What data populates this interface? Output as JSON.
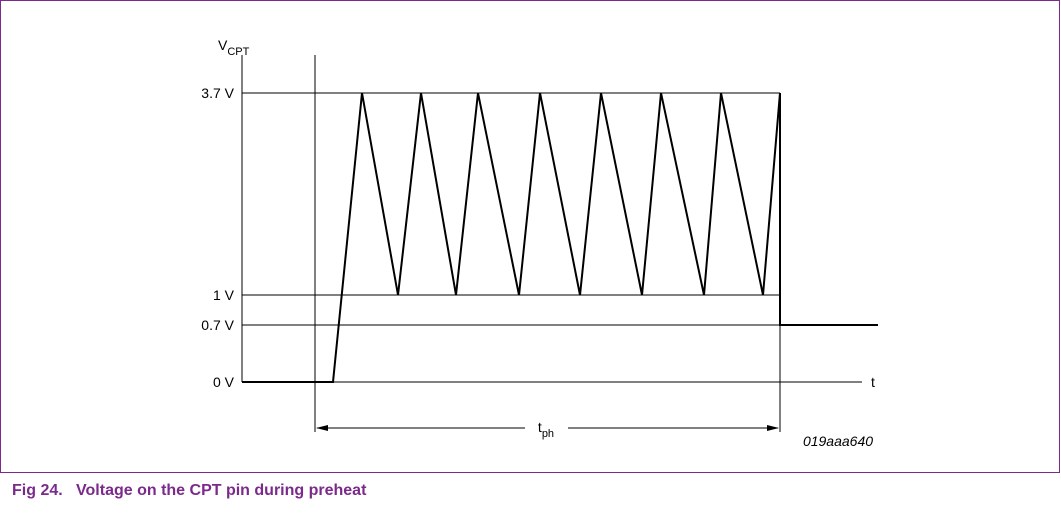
{
  "diagram": {
    "axis_label": {
      "main": "V",
      "sub": "CPT"
    },
    "levels": [
      "3.7 V",
      "1 V",
      "0.7 V",
      "0 V"
    ],
    "time_label": "t",
    "duration_label": {
      "main": "t",
      "sub": "ph"
    },
    "figure_id": "019aaa640"
  },
  "caption": {
    "number": "Fig 24.",
    "text": "Voltage on the CPT pin during preheat"
  }
}
